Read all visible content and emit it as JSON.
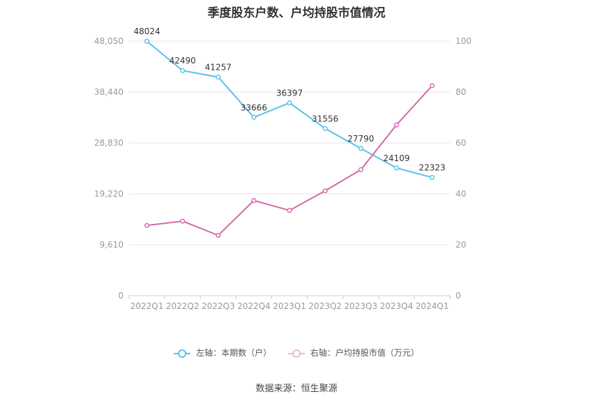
{
  "title": "季度股东户数、户均持股市值情况",
  "source": "数据来源：恒生聚源",
  "colors": {
    "left_series": "#5bc0eb",
    "right_series": "#d36aa9",
    "grid": "#e6e6e6",
    "axis_text": "#999999"
  },
  "chart_data": {
    "type": "line",
    "categories": [
      "2022Q1",
      "2022Q2",
      "2022Q3",
      "2022Q4",
      "2023Q1",
      "2023Q2",
      "2023Q3",
      "2023Q4",
      "2024Q1"
    ],
    "y_left": {
      "min": 0,
      "max": 48050,
      "ticks": [
        "0",
        "9,610",
        "19,220",
        "28,830",
        "38,440",
        "48,050"
      ]
    },
    "y_right": {
      "min": 0,
      "max": 100,
      "ticks": [
        "0",
        "20",
        "40",
        "60",
        "80",
        "100"
      ]
    },
    "series": [
      {
        "name": "左轴：本期数（户）",
        "axis": "left",
        "values": [
          48024,
          42490,
          41257,
          33666,
          36397,
          31556,
          27790,
          24109,
          22323
        ],
        "labels": [
          "48024",
          "42490",
          "41257",
          "33666",
          "36397",
          "31556",
          "27790",
          "24109",
          "22323"
        ]
      },
      {
        "name": "右轴：户均持股市值（万元）",
        "axis": "right",
        "values": [
          27.6,
          29.3,
          23.7,
          37.4,
          33.5,
          41.2,
          49.5,
          67.1,
          82.5
        ]
      }
    ],
    "grid": true,
    "legend_position": "bottom"
  }
}
